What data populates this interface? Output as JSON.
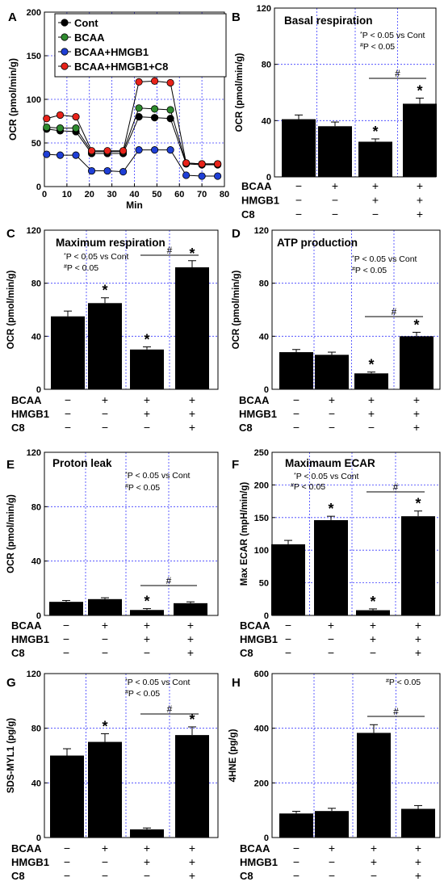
{
  "chart_data": [
    {
      "id": "A",
      "type": "line",
      "xlabel": "Min",
      "ylabel": "OCR (pmol/min/g)",
      "xlim": [
        0,
        80
      ],
      "ylim": [
        0,
        200
      ],
      "xticks": [
        0,
        10,
        20,
        30,
        40,
        50,
        60,
        70,
        80
      ],
      "yticks": [
        0,
        50,
        100,
        150,
        200
      ],
      "grid": true,
      "legend": "top-left",
      "x": [
        1,
        7,
        14,
        21,
        28,
        35,
        42,
        49,
        56,
        63,
        70,
        77
      ],
      "series": [
        {
          "name": "Cont",
          "color": "#000000",
          "values": [
            66,
            64,
            63,
            38,
            38,
            38,
            80,
            79,
            78,
            26,
            25,
            25
          ],
          "err": [
            3,
            3,
            3,
            2,
            2,
            2,
            3,
            3,
            3,
            2,
            2,
            2
          ]
        },
        {
          "name": "BCAA",
          "color": "#2e8b2e",
          "values": [
            68,
            67,
            67,
            40,
            40,
            40,
            90,
            89,
            88,
            27,
            26,
            26
          ],
          "err": [
            3,
            3,
            3,
            2,
            2,
            2,
            4,
            4,
            4,
            2,
            2,
            2
          ]
        },
        {
          "name": "BCAA+HMGB1",
          "color": "#1f3fd6",
          "values": [
            37,
            36,
            36,
            18,
            18,
            17,
            42,
            42,
            42,
            13,
            12,
            12
          ],
          "err": [
            2,
            2,
            2,
            2,
            2,
            2,
            2,
            2,
            2,
            2,
            2,
            2
          ]
        },
        {
          "name": "BCAA+HMGB1+C8",
          "color": "#e8231a",
          "values": [
            78,
            82,
            80,
            41,
            41,
            41,
            120,
            121,
            119,
            27,
            26,
            26
          ],
          "err": [
            3,
            3,
            3,
            2,
            2,
            2,
            4,
            4,
            4,
            2,
            2,
            2
          ]
        }
      ]
    },
    {
      "id": "B",
      "type": "bar",
      "title": "Basal respiration",
      "ylabel": "OCR (pmol/min/g)",
      "ylim": [
        0,
        120
      ],
      "yticks": [
        0,
        40,
        80,
        120
      ],
      "values": [
        41,
        36,
        25,
        52
      ],
      "err": [
        3,
        3,
        2,
        4
      ],
      "stars": [
        "",
        "",
        "*",
        "*"
      ],
      "hash_between": [
        2,
        3
      ],
      "notes": [
        {
          "sym": "*",
          "text": "P < 0.05 vs Cont"
        },
        {
          "sym": "#",
          "text": "P < 0.05"
        }
      ]
    },
    {
      "id": "C",
      "type": "bar",
      "title": "Maximum respiration",
      "ylabel": "OCR (pmol/min/g)",
      "ylim": [
        0,
        120
      ],
      "yticks": [
        0,
        40,
        80,
        120
      ],
      "values": [
        55,
        65,
        30,
        92
      ],
      "err": [
        4,
        4,
        2,
        5
      ],
      "stars": [
        "",
        "*",
        "*",
        "*"
      ],
      "hash_between": [
        2,
        3
      ],
      "notes": [
        {
          "sym": "*",
          "text": "P < 0.05 vs Cont"
        },
        {
          "sym": "#",
          "text": "P < 0.05"
        }
      ]
    },
    {
      "id": "D",
      "type": "bar",
      "title": "ATP production",
      "ylabel": "OCR (pmol/min/g)",
      "ylim": [
        0,
        120
      ],
      "yticks": [
        0,
        40,
        80,
        120
      ],
      "values": [
        28,
        26,
        12,
        40
      ],
      "err": [
        2,
        2,
        1,
        3
      ],
      "stars": [
        "",
        "",
        "*",
        "*"
      ],
      "hash_between": [
        2,
        3
      ],
      "notes": [
        {
          "sym": "*",
          "text": "P < 0.05 vs Cont"
        },
        {
          "sym": "#",
          "text": "P < 0.05"
        }
      ]
    },
    {
      "id": "E",
      "type": "bar",
      "title": "Proton leak",
      "ylabel": "OCR (pmol/min/g)",
      "ylim": [
        0,
        120
      ],
      "yticks": [
        0,
        40,
        80,
        120
      ],
      "values": [
        10,
        12,
        4,
        9
      ],
      "err": [
        1,
        1,
        1,
        1
      ],
      "stars": [
        "",
        "",
        "*",
        ""
      ],
      "hash_between": [
        2,
        3
      ],
      "notes": [
        {
          "sym": "*",
          "text": "P < 0.05 vs Cont"
        },
        {
          "sym": "#",
          "text": "P < 0.05"
        }
      ]
    },
    {
      "id": "F",
      "type": "bar",
      "title": "Maximaum ECAR",
      "ylabel": "Max ECAR (mpH/min/g)",
      "ylim": [
        0,
        250
      ],
      "yticks": [
        0,
        50,
        100,
        150,
        200,
        250
      ],
      "values": [
        109,
        146,
        8,
        152
      ],
      "err": [
        6,
        6,
        2,
        8
      ],
      "stars": [
        "",
        "*",
        "*",
        "*"
      ],
      "hash_between": [
        2,
        3
      ],
      "notes": [
        {
          "sym": "*",
          "text": "P < 0.05 vs Cont"
        },
        {
          "sym": "#",
          "text": "P < 0.05"
        }
      ]
    },
    {
      "id": "G",
      "type": "bar",
      "ylabel": "SDS-MYL1 (pg/g)",
      "ylim": [
        0,
        120
      ],
      "yticks": [
        0,
        40,
        80,
        120
      ],
      "values": [
        60,
        70,
        6,
        75
      ],
      "err": [
        5,
        6,
        1,
        6
      ],
      "stars": [
        "",
        "*",
        "",
        "*"
      ],
      "hash_between": [
        2,
        3
      ],
      "notes": [
        {
          "sym": "*",
          "text": "P < 0.05 vs Cont"
        },
        {
          "sym": "#",
          "text": "P < 0.05"
        }
      ]
    },
    {
      "id": "H",
      "type": "bar",
      "ylabel": "4HNE (pg/g)",
      "ylim": [
        0,
        600
      ],
      "yticks": [
        0,
        200,
        400,
        600
      ],
      "values": [
        88,
        97,
        383,
        105
      ],
      "err": [
        8,
        10,
        30,
        12
      ],
      "stars": [
        "",
        "",
        "",
        ""
      ],
      "hash_between": [
        2,
        3
      ],
      "notes": [
        {
          "sym": "#",
          "text": "P < 0.05"
        }
      ]
    }
  ],
  "conditions": {
    "rows": [
      "BCAA",
      "HMGB1",
      "C8"
    ],
    "signs": [
      [
        "−",
        "+",
        "+",
        "+"
      ],
      [
        "−",
        "−",
        "+",
        "+"
      ],
      [
        "−",
        "−",
        "−",
        "+"
      ]
    ]
  }
}
